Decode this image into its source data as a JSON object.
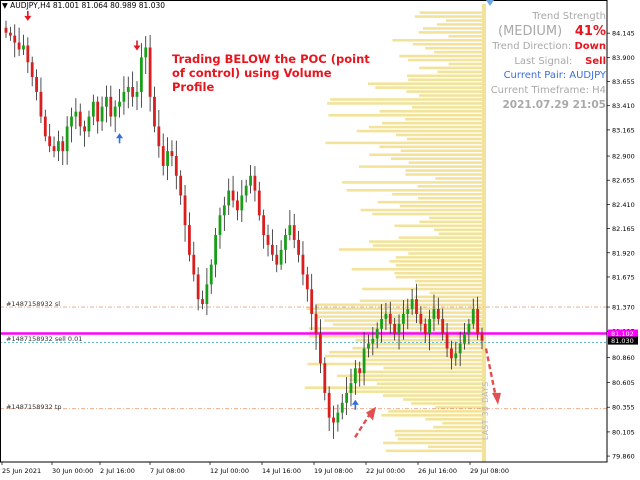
{
  "chart_header": {
    "symbol_line": "AUDJPY,H4  81.001 81.064 80.989 81.030"
  },
  "annotation": {
    "line1": "Trading BELOW the POC (point",
    "line2": "of control) using Volume Profile"
  },
  "indicator": {
    "trend_strength_label": "Trend Strength",
    "strength_level": "(MEDIUM)",
    "strength_percent": "41%",
    "trend_direction_label": "Trend Direction:",
    "trend_direction_value": "Down",
    "last_signal_label": "Last Signal:",
    "last_signal_value": "Sell",
    "current_pair": "Current Pair: AUDJPY",
    "current_timeframe": "Current Timeframe: H4",
    "timestamp": "2021.07.29 21:05"
  },
  "order_lines": {
    "sl_label": "#1487158932 sl",
    "sell_label": "#1487158932 sell 0.01",
    "tp_label": "#1487158932 tp"
  },
  "profile_label": "LAST 38 DAYS",
  "colors": {
    "bull": "#1a9e1a",
    "bear": "#d81e1e",
    "profile": "#f3e39a",
    "poc": "#ff00ff",
    "signal_up": "#2f6fe0",
    "signal_down": "#e8141e"
  },
  "chart_data": {
    "type": "candlestick",
    "symbol": "AUDJPY",
    "timeframe": "H4",
    "y_ticks": [
      "84.145",
      "83.900",
      "83.655",
      "83.410",
      "83.165",
      "82.900",
      "82.655",
      "82.410",
      "82.165",
      "81.920",
      "81.675",
      "81.370",
      "81.125",
      "80.860",
      "80.605",
      "80.355",
      "80.105",
      "79.860"
    ],
    "y_range": [
      79.8,
      84.4
    ],
    "x_ticks": [
      "25 Jun 2021",
      "30 Jun 00:00",
      "2 Jul 16:00",
      "7 Jul 08:00",
      "12 Jul 00:00",
      "14 Jul 16:00",
      "19 Jul 08:00",
      "22 Jul 00:00",
      "26 Jul 16:00",
      "29 Jul 08:00"
    ],
    "price_tags": {
      "poc": "81.102",
      "current": "81.030"
    },
    "levels": {
      "sl": 81.37,
      "poc": 81.102,
      "sell": 81.01,
      "current": 81.03,
      "tp": 80.34
    },
    "closes": [
      84.15,
      84.12,
      84.05,
      83.98,
      84.02,
      83.85,
      83.7,
      83.55,
      83.3,
      83.1,
      83.0,
      82.95,
      83.05,
      82.95,
      83.2,
      83.3,
      83.35,
      83.2,
      83.15,
      83.3,
      83.45,
      83.25,
      83.4,
      83.5,
      83.3,
      83.4,
      83.45,
      83.55,
      83.6,
      83.5,
      83.55,
      83.9,
      84.0,
      83.5,
      83.2,
      83.0,
      82.8,
      82.95,
      82.9,
      82.7,
      82.5,
      82.2,
      81.9,
      81.7,
      81.45,
      81.4,
      81.6,
      81.8,
      82.1,
      82.3,
      82.4,
      82.55,
      82.45,
      82.35,
      82.5,
      82.6,
      82.7,
      82.55,
      82.3,
      82.1,
      82.0,
      81.9,
      81.8,
      81.95,
      82.1,
      82.2,
      82.05,
      81.9,
      81.7,
      81.55,
      81.3,
      81.1,
      80.8,
      80.5,
      80.25,
      80.2,
      80.3,
      80.4,
      80.5,
      80.6,
      80.75,
      80.7,
      80.95,
      81.0,
      81.05,
      81.15,
      81.25,
      81.3,
      81.2,
      81.1,
      81.2,
      81.3,
      81.35,
      81.45,
      81.3,
      81.2,
      81.1,
      81.25,
      81.35,
      81.25,
      81.1,
      80.95,
      80.85,
      80.9,
      81.0,
      81.1,
      81.2,
      81.35,
      81.1,
      81.03
    ],
    "profile_label": "LAST 38 DAYS",
    "signals": [
      {
        "bar": 5,
        "type": "sell"
      },
      {
        "bar": 26,
        "type": "buy"
      },
      {
        "bar": 30,
        "type": "sell"
      },
      {
        "bar": 80,
        "type": "buy"
      }
    ]
  }
}
